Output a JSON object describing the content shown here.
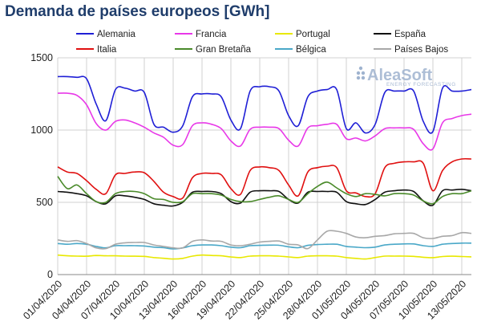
{
  "header": {
    "title": "Demanda de países europeos [GWh]"
  },
  "watermark": {
    "brand": "AleaSoft",
    "tagline": "ENERGY FORECASTING"
  },
  "colors": {
    "Alemania": "#1f1fd6",
    "Francia": "#e838e8",
    "Portugal": "#e8e800",
    "España": "#111111",
    "Italia": "#e01010",
    "Gran Bretaña": "#4a8a2a",
    "Bélgica": "#4aa8c8",
    "Países Bajos": "#a8a8a8",
    "grid": "#d0d0d0",
    "brand": "#1f3d6b"
  },
  "chart_data": {
    "type": "line",
    "title": "Demanda de países europeos [GWh]",
    "xlabel": "",
    "ylabel": "",
    "ylim": [
      0,
      1500
    ],
    "yticks": [
      0,
      500,
      1000,
      1500
    ],
    "xtick_labels": [
      "01/04/2020",
      "04/04/2020",
      "07/04/2020",
      "10/04/2020",
      "13/04/2020",
      "16/04/2020",
      "19/04/2020",
      "22/04/2020",
      "25/04/2020",
      "28/04/2020",
      "01/05/2020",
      "04/05/2020",
      "07/05/2020",
      "10/05/2020",
      "13/05/2020"
    ],
    "x": [
      "01/04",
      "02/04",
      "03/04",
      "04/04",
      "05/04",
      "06/04",
      "07/04",
      "08/04",
      "09/04",
      "10/04",
      "11/04",
      "12/04",
      "13/04",
      "14/04",
      "15/04",
      "16/04",
      "17/04",
      "18/04",
      "19/04",
      "20/04",
      "21/04",
      "22/04",
      "23/04",
      "24/04",
      "25/04",
      "26/04",
      "27/04",
      "28/04",
      "29/04",
      "30/04",
      "01/05",
      "02/05",
      "03/05",
      "04/05",
      "05/05",
      "06/05",
      "07/05",
      "08/05",
      "09/05",
      "10/05",
      "11/05",
      "12/05",
      "13/05",
      "14/05"
    ],
    "grid": true,
    "legend_position": "top",
    "series": [
      {
        "name": "Alemania",
        "values": [
          1370,
          1370,
          1365,
          1355,
          1180,
          1065,
          1280,
          1290,
          1270,
          1260,
          1040,
          1020,
          985,
          1030,
          1230,
          1250,
          1250,
          1230,
          1070,
          1010,
          1270,
          1300,
          1300,
          1270,
          1100,
          1030,
          1230,
          1270,
          1280,
          1280,
          1010,
          1050,
          980,
          1040,
          1260,
          1270,
          1270,
          1270,
          1060,
          990,
          1290,
          1270,
          1270,
          1280
        ]
      },
      {
        "name": "Francia",
        "values": [
          1255,
          1255,
          1240,
          1175,
          1045,
          1000,
          1060,
          1070,
          1050,
          1020,
          980,
          950,
          895,
          900,
          1030,
          1050,
          1040,
          1010,
          925,
          890,
          1005,
          1020,
          1020,
          1010,
          930,
          890,
          1015,
          1030,
          1040,
          1040,
          940,
          945,
          925,
          960,
          1010,
          1015,
          1015,
          1005,
          905,
          870,
          1050,
          1080,
          1100,
          1110
        ]
      },
      {
        "name": "Portugal",
        "values": [
          135,
          130,
          128,
          127,
          132,
          130,
          130,
          128,
          127,
          126,
          118,
          113,
          108,
          112,
          128,
          135,
          132,
          130,
          122,
          118,
          128,
          130,
          130,
          128,
          122,
          118,
          128,
          130,
          130,
          128,
          118,
          112,
          108,
          118,
          128,
          128,
          128,
          126,
          120,
          117,
          125,
          127,
          125,
          123
        ]
      },
      {
        "name": "España",
        "values": [
          575,
          570,
          560,
          545,
          505,
          490,
          545,
          545,
          535,
          520,
          490,
          480,
          475,
          500,
          570,
          575,
          575,
          560,
          505,
          495,
          570,
          580,
          580,
          575,
          520,
          495,
          570,
          575,
          575,
          570,
          505,
          490,
          485,
          520,
          570,
          580,
          585,
          575,
          510,
          480,
          580,
          585,
          590,
          580
        ]
      },
      {
        "name": "Italia",
        "values": [
          745,
          710,
          700,
          650,
          590,
          560,
          690,
          700,
          710,
          705,
          645,
          570,
          540,
          530,
          670,
          700,
          700,
          690,
          595,
          555,
          720,
          745,
          740,
          720,
          620,
          545,
          710,
          740,
          750,
          740,
          580,
          565,
          540,
          560,
          740,
          770,
          780,
          780,
          770,
          580,
          720,
          780,
          800,
          800
        ]
      },
      {
        "name": "Gran Bretaña",
        "values": [
          680,
          595,
          620,
          560,
          505,
          500,
          560,
          575,
          575,
          560,
          525,
          520,
          500,
          505,
          560,
          560,
          560,
          550,
          520,
          505,
          505,
          520,
          535,
          545,
          520,
          500,
          560,
          610,
          640,
          600,
          560,
          540,
          560,
          555,
          545,
          560,
          560,
          550,
          510,
          490,
          540,
          560,
          560,
          580
        ]
      },
      {
        "name": "Bélgica",
        "values": [
          215,
          210,
          215,
          210,
          195,
          185,
          200,
          200,
          200,
          198,
          190,
          186,
          178,
          185,
          200,
          205,
          205,
          200,
          190,
          186,
          200,
          202,
          204,
          203,
          192,
          186,
          202,
          208,
          210,
          210,
          195,
          190,
          186,
          190,
          205,
          210,
          212,
          212,
          200,
          195,
          210,
          215,
          218,
          218
        ]
      },
      {
        "name": "Países Bajos",
        "values": [
          240,
          230,
          235,
          215,
          185,
          180,
          210,
          220,
          222,
          222,
          205,
          195,
          185,
          185,
          230,
          240,
          232,
          230,
          205,
          200,
          210,
          225,
          230,
          232,
          210,
          205,
          180,
          240,
          300,
          300,
          285,
          260,
          255,
          265,
          270,
          282,
          285,
          285,
          255,
          250,
          265,
          270,
          290,
          285
        ]
      }
    ]
  }
}
